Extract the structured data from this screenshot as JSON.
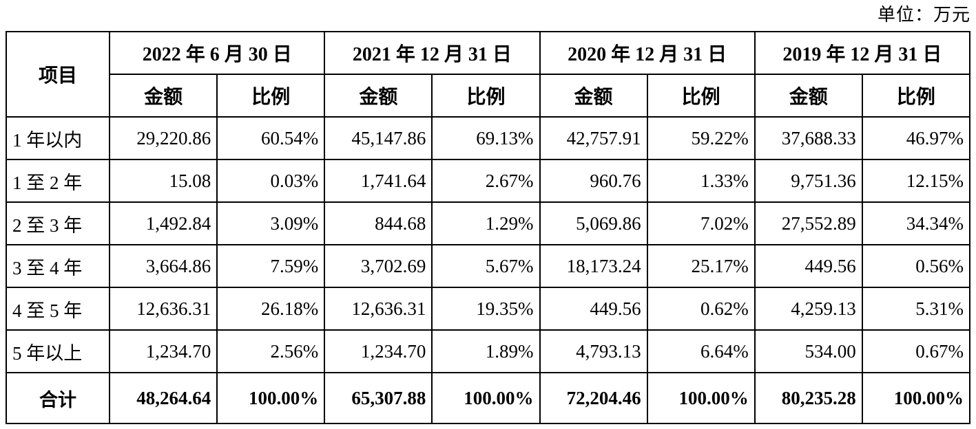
{
  "unit_note": "单位：万元",
  "table": {
    "header": {
      "item_label": "项目",
      "periods": [
        "2022 年 6 月 30 日",
        "2021 年 12 月 31 日",
        "2020 年 12 月 31 日",
        "2019 年 12 月 31 日"
      ],
      "amount_label": "金额",
      "ratio_label": "比例"
    },
    "rows": [
      {
        "label": "1 年以内",
        "values": [
          "29,220.86",
          "60.54%",
          "45,147.86",
          "69.13%",
          "42,757.91",
          "59.22%",
          "37,688.33",
          "46.97%"
        ]
      },
      {
        "label": "1 至 2 年",
        "values": [
          "15.08",
          "0.03%",
          "1,741.64",
          "2.67%",
          "960.76",
          "1.33%",
          "9,751.36",
          "12.15%"
        ]
      },
      {
        "label": "2 至 3 年",
        "values": [
          "1,492.84",
          "3.09%",
          "844.68",
          "1.29%",
          "5,069.86",
          "7.02%",
          "27,552.89",
          "34.34%"
        ]
      },
      {
        "label": "3 至 4 年",
        "values": [
          "3,664.86",
          "7.59%",
          "3,702.69",
          "5.67%",
          "18,173.24",
          "25.17%",
          "449.56",
          "0.56%"
        ]
      },
      {
        "label": "4 至 5 年",
        "values": [
          "12,636.31",
          "26.18%",
          "12,636.31",
          "19.35%",
          "449.56",
          "0.62%",
          "4,259.13",
          "5.31%"
        ]
      },
      {
        "label": "5 年以上",
        "values": [
          "1,234.70",
          "2.56%",
          "1,234.70",
          "1.89%",
          "4,793.13",
          "6.64%",
          "534.00",
          "0.67%"
        ]
      }
    ],
    "total": {
      "label": "合计",
      "values": [
        "48,264.64",
        "100.00%",
        "65,307.88",
        "100.00%",
        "72,204.46",
        "100.00%",
        "80,235.28",
        "100.00%"
      ]
    }
  }
}
